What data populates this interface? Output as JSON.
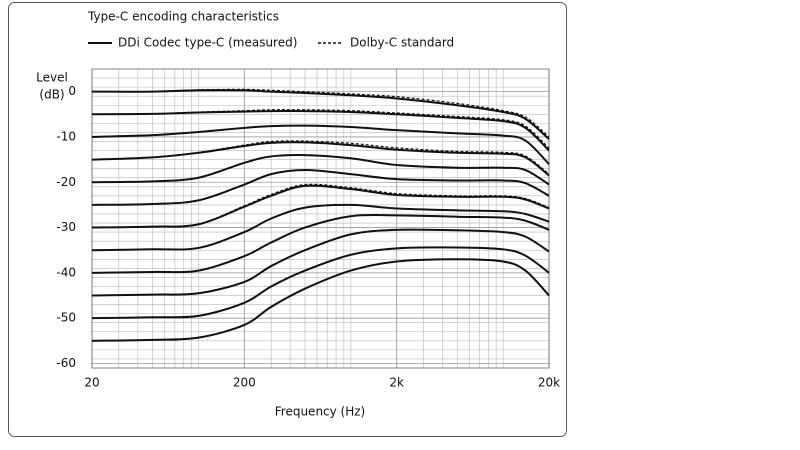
{
  "chart_data": {
    "type": "line",
    "title": "Type-C encoding characteristics",
    "xlabel": "Frequency (Hz)",
    "ylabel": [
      "Level",
      "(dB)"
    ],
    "log_x": true,
    "grid": true,
    "minor_grid": true,
    "xlim": [
      20,
      20000
    ],
    "ylim": [
      -61,
      5
    ],
    "xticks": [
      20,
      200,
      {
        "value": 2000,
        "label": "2k"
      },
      {
        "value": 20000,
        "label": "20k"
      }
    ],
    "yticks": [
      0,
      -10,
      -20,
      -30,
      -40,
      -50,
      -60
    ],
    "legend": [
      {
        "name": "DDi Codec type-C (measured)",
        "dash": false
      },
      {
        "name": "Dolby-C standard",
        "dash": true
      }
    ],
    "x": [
      20,
      50,
      100,
      200,
      300,
      500,
      1000,
      2000,
      5000,
      10000,
      14000,
      20000
    ],
    "series": [
      {
        "group": 0,
        "color": "#111111",
        "values": [
          0,
          0,
          0.3,
          0.3,
          0,
          -0.3,
          -0.8,
          -1.5,
          -3,
          -4.5,
          -6,
          -10.5
        ]
      },
      {
        "group": 0,
        "color": "#111111",
        "values": [
          -5,
          -4.9,
          -4.6,
          -4.4,
          -4.3,
          -4.3,
          -4.5,
          -5,
          -5.8,
          -6.5,
          -8,
          -13
        ]
      },
      {
        "group": 0,
        "color": "#111111",
        "values": [
          -10,
          -9.6,
          -8.9,
          -8,
          -7.6,
          -7.5,
          -7.8,
          -8.5,
          -9.2,
          -9.7,
          -10.8,
          -16
        ]
      },
      {
        "group": 0,
        "color": "#111111",
        "values": [
          -15,
          -14.5,
          -13.5,
          -12,
          -11.3,
          -11.2,
          -11.8,
          -12.8,
          -13.5,
          -13.7,
          -14.5,
          -18.5
        ]
      },
      {
        "group": 0,
        "color": "#111111",
        "values": [
          -20,
          -19.8,
          -19,
          -15.7,
          -14.3,
          -14,
          -14.7,
          -16.2,
          -16.8,
          -16.8,
          -17.3,
          -20.5
        ]
      },
      {
        "group": 0,
        "color": "#111111",
        "values": [
          -25,
          -24.8,
          -24,
          -20.5,
          -18.2,
          -17.3,
          -18.2,
          -19.3,
          -19.6,
          -19.6,
          -20.2,
          -23
        ]
      },
      {
        "group": 0,
        "color": "#111111",
        "values": [
          -30,
          -29.8,
          -29.3,
          -25.4,
          -23,
          -20.8,
          -21.5,
          -22.8,
          -23.2,
          -23.2,
          -23.8,
          -25.8
        ]
      },
      {
        "group": 0,
        "color": "#111111",
        "values": [
          -35,
          -34.8,
          -34.5,
          -31,
          -28,
          -25.6,
          -25,
          -25.8,
          -26.2,
          -26.4,
          -27,
          -28.7
        ]
      },
      {
        "group": 0,
        "color": "#111111",
        "values": [
          -40,
          -39.8,
          -39.5,
          -36.3,
          -33.3,
          -30,
          -27.5,
          -27.3,
          -27.6,
          -27.8,
          -28.5,
          -30.5
        ]
      },
      {
        "group": 0,
        "color": "#111111",
        "values": [
          -45,
          -44.8,
          -44.5,
          -42,
          -38.5,
          -35,
          -31.5,
          -30.5,
          -30.6,
          -31,
          -32,
          -35.3
        ]
      },
      {
        "group": 0,
        "color": "#111111",
        "values": [
          -50,
          -49.8,
          -49.5,
          -46.6,
          -43,
          -39.5,
          -36,
          -34.6,
          -34.4,
          -34.8,
          -36.2,
          -40
        ]
      },
      {
        "group": 0,
        "color": "#111111",
        "values": [
          -55,
          -54.8,
          -54.3,
          -51.5,
          -47.5,
          -43.5,
          -39.5,
          -37.5,
          -37,
          -37.5,
          -39.5,
          -45
        ]
      },
      {
        "group": 1,
        "color": "#111111",
        "values": [
          0,
          0,
          0.4,
          0.5,
          0.3,
          0,
          -0.5,
          -1.1,
          -2.6,
          -4.2,
          -5.6,
          -10
        ]
      },
      {
        "group": 1,
        "color": "#111111",
        "values": [
          -5,
          -4.9,
          -4.5,
          -4.2,
          -4,
          -4,
          -4.2,
          -4.7,
          -5.5,
          -6.2,
          -7.6,
          -12.5
        ]
      },
      {
        "group": 1,
        "color": "#111111",
        "values": [
          -15,
          -14.5,
          -13.4,
          -11.8,
          -11,
          -10.9,
          -11.4,
          -12.4,
          -13.2,
          -13.4,
          -14.2,
          -18.2
        ]
      },
      {
        "group": 1,
        "color": "#111111",
        "values": [
          -30,
          -29.8,
          -29.2,
          -25.2,
          -22.7,
          -20.5,
          -21.2,
          -22.5,
          -23,
          -23,
          -23.6,
          -25.6
        ]
      }
    ]
  }
}
